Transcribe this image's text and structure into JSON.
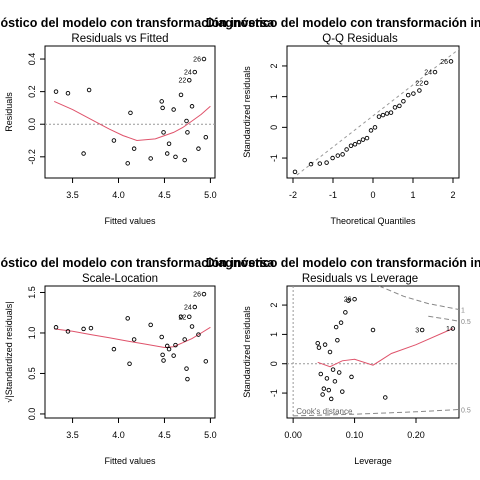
{
  "chart_data": [
    {
      "type": "scatter",
      "title": "Diagnóstico del modelo con transformación inversa",
      "subtitle": "Residuals vs Fitted",
      "xlabel": "Fitted values",
      "ylabel": "Residuals",
      "xlim": [
        3.2,
        5.05
      ],
      "ylim": [
        -0.33,
        0.48
      ],
      "xticks": [
        3.5,
        4.0,
        4.5,
        5.0
      ],
      "xtick_labels": [
        "3.5",
        "4.0",
        "4.5",
        "5.0"
      ],
      "yticks": [
        -0.2,
        0.0,
        0.2,
        0.4
      ],
      "ytick_labels": [
        "-0.2",
        "0.0",
        "0.2",
        "0.4"
      ],
      "refline_y": 0,
      "points": [
        {
          "x": 3.32,
          "y": 0.2
        },
        {
          "x": 3.45,
          "y": 0.19
        },
        {
          "x": 3.62,
          "y": -0.18
        },
        {
          "x": 3.68,
          "y": 0.21
        },
        {
          "x": 3.95,
          "y": -0.1
        },
        {
          "x": 4.1,
          "y": -0.24
        },
        {
          "x": 4.13,
          "y": 0.07
        },
        {
          "x": 4.17,
          "y": -0.15
        },
        {
          "x": 4.35,
          "y": -0.21
        },
        {
          "x": 4.47,
          "y": 0.14
        },
        {
          "x": 4.48,
          "y": 0.1
        },
        {
          "x": 4.49,
          "y": -0.05
        },
        {
          "x": 4.53,
          "y": -0.18
        },
        {
          "x": 4.55,
          "y": -0.12
        },
        {
          "x": 4.6,
          "y": 0.09
        },
        {
          "x": 4.62,
          "y": -0.2
        },
        {
          "x": 4.68,
          "y": 0.18
        },
        {
          "x": 4.72,
          "y": -0.22
        },
        {
          "x": 4.74,
          "y": 0.02
        },
        {
          "x": 4.75,
          "y": -0.05
        },
        {
          "x": 4.77,
          "y": 0.27
        },
        {
          "x": 4.8,
          "y": 0.11
        },
        {
          "x": 4.83,
          "y": 0.32
        },
        {
          "x": 4.87,
          "y": -0.15
        },
        {
          "x": 4.93,
          "y": 0.4
        },
        {
          "x": 4.95,
          "y": -0.08
        }
      ],
      "smooth": [
        [
          3.3,
          0.14
        ],
        [
          3.5,
          0.09
        ],
        [
          3.7,
          0.03
        ],
        [
          3.9,
          -0.03
        ],
        [
          4.05,
          -0.07
        ],
        [
          4.2,
          -0.1
        ],
        [
          4.4,
          -0.09
        ],
        [
          4.6,
          -0.05
        ],
        [
          4.7,
          -0.02
        ],
        [
          4.8,
          0.02
        ],
        [
          4.9,
          0.06
        ],
        [
          5.0,
          0.11
        ]
      ],
      "labels": [
        {
          "text": "26",
          "x": 4.93,
          "y": 0.4
        },
        {
          "text": "24",
          "x": 4.83,
          "y": 0.32
        },
        {
          "text": "22",
          "x": 4.77,
          "y": 0.27
        }
      ]
    },
    {
      "type": "scatter",
      "title": "Diagnóstico del modelo con transformación inversa",
      "subtitle": "Q-Q Residuals",
      "xlabel": "Theoretical Quantiles",
      "ylabel": "Standardized residuals",
      "xlim": [
        -2.15,
        2.15
      ],
      "ylim": [
        -1.65,
        2.65
      ],
      "xticks": [
        -2,
        -1,
        0,
        1,
        2
      ],
      "xtick_labels": [
        "-2",
        "-1",
        "0",
        "1",
        "2"
      ],
      "yticks": [
        -1,
        0,
        1,
        2
      ],
      "ytick_labels": [
        "-1",
        "0",
        "1",
        "2"
      ],
      "refline_from": [
        -1.9,
        -1.55
      ],
      "refline_to": [
        2.2,
        2.6
      ],
      "points": [
        {
          "x": -1.95,
          "y": -1.45
        },
        {
          "x": -1.55,
          "y": -1.2
        },
        {
          "x": -1.33,
          "y": -1.18
        },
        {
          "x": -1.16,
          "y": -1.15
        },
        {
          "x": -1.01,
          "y": -1.0
        },
        {
          "x": -0.88,
          "y": -0.92
        },
        {
          "x": -0.76,
          "y": -0.88
        },
        {
          "x": -0.66,
          "y": -0.72
        },
        {
          "x": -0.55,
          "y": -0.6
        },
        {
          "x": -0.45,
          "y": -0.55
        },
        {
          "x": -0.35,
          "y": -0.48
        },
        {
          "x": -0.25,
          "y": -0.4
        },
        {
          "x": -0.15,
          "y": -0.35
        },
        {
          "x": -0.05,
          "y": -0.1
        },
        {
          "x": 0.05,
          "y": 0.0
        },
        {
          "x": 0.15,
          "y": 0.35
        },
        {
          "x": 0.25,
          "y": 0.4
        },
        {
          "x": 0.35,
          "y": 0.45
        },
        {
          "x": 0.45,
          "y": 0.48
        },
        {
          "x": 0.55,
          "y": 0.65
        },
        {
          "x": 0.66,
          "y": 0.7
        },
        {
          "x": 0.76,
          "y": 0.85
        },
        {
          "x": 0.88,
          "y": 1.05
        },
        {
          "x": 1.01,
          "y": 1.1
        },
        {
          "x": 1.16,
          "y": 1.2
        },
        {
          "x": 1.33,
          "y": 1.45
        },
        {
          "x": 1.55,
          "y": 1.8
        },
        {
          "x": 1.95,
          "y": 2.15
        }
      ],
      "labels": [
        {
          "text": "26",
          "x": 1.95,
          "y": 2.15
        },
        {
          "text": "24",
          "x": 1.55,
          "y": 1.8
        },
        {
          "text": "22",
          "x": 1.33,
          "y": 1.45
        }
      ]
    },
    {
      "type": "scatter",
      "title": "Diagnóstico del modelo con transformación inversa",
      "subtitle": "Scale-Location",
      "xlabel": "Fitted values",
      "ylabel": "√|Standardized residuals|",
      "xlim": [
        3.2,
        5.05
      ],
      "ylim": [
        -0.05,
        1.58
      ],
      "xticks": [
        3.5,
        4.0,
        4.5,
        5.0
      ],
      "xtick_labels": [
        "3.5",
        "4.0",
        "4.5",
        "5.0"
      ],
      "yticks": [
        0.0,
        0.5,
        1.0,
        1.5
      ],
      "ytick_labels": [
        "0.0",
        "0.5",
        "1.0",
        "1.5"
      ],
      "points": [
        {
          "x": 3.32,
          "y": 1.07
        },
        {
          "x": 3.45,
          "y": 1.02
        },
        {
          "x": 3.62,
          "y": 1.05
        },
        {
          "x": 3.7,
          "y": 1.06
        },
        {
          "x": 3.95,
          "y": 0.8
        },
        {
          "x": 4.1,
          "y": 1.18
        },
        {
          "x": 4.12,
          "y": 0.62
        },
        {
          "x": 4.17,
          "y": 0.92
        },
        {
          "x": 4.35,
          "y": 1.1
        },
        {
          "x": 4.47,
          "y": 0.95
        },
        {
          "x": 4.48,
          "y": 0.73
        },
        {
          "x": 4.49,
          "y": 0.66
        },
        {
          "x": 4.53,
          "y": 0.84
        },
        {
          "x": 4.55,
          "y": 0.8
        },
        {
          "x": 4.6,
          "y": 0.72
        },
        {
          "x": 4.62,
          "y": 0.85
        },
        {
          "x": 4.68,
          "y": 1.2
        },
        {
          "x": 4.72,
          "y": 0.92
        },
        {
          "x": 4.74,
          "y": 0.56
        },
        {
          "x": 4.75,
          "y": 0.43
        },
        {
          "x": 4.77,
          "y": 1.2
        },
        {
          "x": 4.8,
          "y": 1.08
        },
        {
          "x": 4.83,
          "y": 1.32
        },
        {
          "x": 4.87,
          "y": 0.98
        },
        {
          "x": 4.93,
          "y": 1.48
        },
        {
          "x": 4.95,
          "y": 0.65
        }
      ],
      "smooth": [
        [
          3.3,
          1.05
        ],
        [
          3.5,
          1.02
        ],
        [
          3.7,
          0.98
        ],
        [
          3.9,
          0.94
        ],
        [
          4.1,
          0.9
        ],
        [
          4.3,
          0.86
        ],
        [
          4.5,
          0.82
        ],
        [
          4.6,
          0.83
        ],
        [
          4.7,
          0.88
        ],
        [
          4.8,
          0.93
        ],
        [
          4.9,
          1.0
        ],
        [
          5.0,
          1.07
        ]
      ],
      "labels": [
        {
          "text": "26",
          "x": 4.93,
          "y": 1.48
        },
        {
          "text": "24",
          "x": 4.83,
          "y": 1.32
        },
        {
          "text": "22",
          "x": 4.77,
          "y": 1.2
        }
      ]
    },
    {
      "type": "scatter",
      "title": "Diagnóstico del modelo con transformación inversa",
      "subtitle": "Residuals vs Leverage",
      "xlabel": "Leverage",
      "ylabel": "Standardized residuals",
      "xlim": [
        -0.01,
        0.27
      ],
      "ylim": [
        -1.85,
        2.65
      ],
      "xticks": [
        0.0,
        0.1,
        0.2
      ],
      "xtick_labels": [
        "0.00",
        "0.10",
        "0.20"
      ],
      "yticks": [
        -1,
        0,
        1,
        2
      ],
      "ytick_labels": [
        "-1",
        "0",
        "1",
        "2"
      ],
      "refline_y": 0,
      "refline_x": 0,
      "cooks_distance_label": "Cook's distance",
      "cooks_contours": [
        {
          "level": "1",
          "side": "upper",
          "points": [
            [
              0.14,
              2.65
            ],
            [
              0.18,
              2.3
            ],
            [
              0.22,
              2.05
            ],
            [
              0.27,
              1.85
            ]
          ]
        },
        {
          "level": "0.5",
          "side": "upper",
          "points": [
            [
              0.22,
              1.62
            ],
            [
              0.25,
              1.52
            ],
            [
              0.27,
              1.45
            ]
          ]
        },
        {
          "level": "0.5",
          "side": "lower",
          "points": [
            [
              0.0,
              -1.78
            ],
            [
              0.1,
              -1.72
            ],
            [
              0.2,
              -1.64
            ],
            [
              0.27,
              -1.56
            ]
          ]
        }
      ],
      "points": [
        {
          "x": 0.04,
          "y": 0.7
        },
        {
          "x": 0.042,
          "y": 0.55
        },
        {
          "x": 0.045,
          "y": -0.35
        },
        {
          "x": 0.048,
          "y": -1.05
        },
        {
          "x": 0.05,
          "y": -0.85
        },
        {
          "x": 0.052,
          "y": 0.65
        },
        {
          "x": 0.055,
          "y": -0.5
        },
        {
          "x": 0.058,
          "y": -0.9
        },
        {
          "x": 0.06,
          "y": 0.4
        },
        {
          "x": 0.062,
          "y": -1.2
        },
        {
          "x": 0.065,
          "y": -0.2
        },
        {
          "x": 0.068,
          "y": -0.6
        },
        {
          "x": 0.07,
          "y": 1.25
        },
        {
          "x": 0.072,
          "y": 0.8
        },
        {
          "x": 0.075,
          "y": -0.3
        },
        {
          "x": 0.078,
          "y": 1.4
        },
        {
          "x": 0.08,
          "y": -0.95
        },
        {
          "x": 0.085,
          "y": 1.75
        },
        {
          "x": 0.09,
          "y": 2.15
        },
        {
          "x": 0.095,
          "y": -0.45
        },
        {
          "x": 0.1,
          "y": 2.2
        },
        {
          "x": 0.13,
          "y": 1.15
        },
        {
          "x": 0.15,
          "y": -1.15
        },
        {
          "x": 0.21,
          "y": 1.15
        },
        {
          "x": 0.26,
          "y": 1.2
        }
      ],
      "smooth": [
        [
          0.04,
          0.05
        ],
        [
          0.06,
          -0.1
        ],
        [
          0.08,
          0.1
        ],
        [
          0.1,
          0.15
        ],
        [
          0.13,
          -0.05
        ],
        [
          0.16,
          0.35
        ],
        [
          0.2,
          0.65
        ],
        [
          0.26,
          1.2
        ]
      ],
      "labels": [
        {
          "text": "26",
          "x": 0.1,
          "y": 2.2
        },
        {
          "text": "3",
          "x": 0.21,
          "y": 1.15
        },
        {
          "text": "1",
          "x": 0.26,
          "y": 1.2
        }
      ]
    }
  ]
}
